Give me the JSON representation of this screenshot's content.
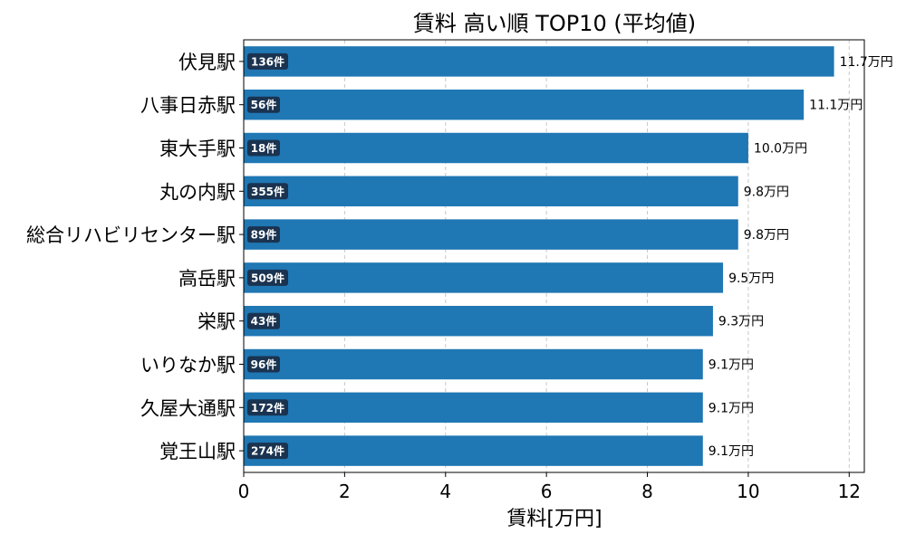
{
  "chart_data": {
    "type": "bar",
    "orientation": "horizontal",
    "title": "賃料 高い順 TOP10 (平均値)",
    "xlabel": "賃料[万円]",
    "ylabel": "",
    "xlim": [
      0,
      12.3
    ],
    "xticks": [
      0,
      2,
      4,
      6,
      8,
      10,
      12
    ],
    "grid": "x-dashed",
    "categories": [
      "伏見駅",
      "八事日赤駅",
      "東大手駅",
      "丸の内駅",
      "総合リハビリセンター駅",
      "高岳駅",
      "栄駅",
      "いりなか駅",
      "久屋大通駅",
      "覚王山駅"
    ],
    "values": [
      11.7,
      11.1,
      10.0,
      9.8,
      9.8,
      9.5,
      9.3,
      9.1,
      9.1,
      9.1
    ],
    "value_labels": [
      "11.7万円",
      "11.1万円",
      "10.0万円",
      "9.8万円",
      "9.8万円",
      "9.5万円",
      "9.3万円",
      "9.1万円",
      "9.1万円",
      "9.1万円"
    ],
    "count_labels": [
      "136件",
      "56件",
      "18件",
      "355件",
      "89件",
      "509件",
      "43件",
      "96件",
      "172件",
      "274件"
    ],
    "colors": {
      "bar": "#1f77b4",
      "badge": "#1a3350",
      "grid": "#c8c8c8"
    }
  }
}
